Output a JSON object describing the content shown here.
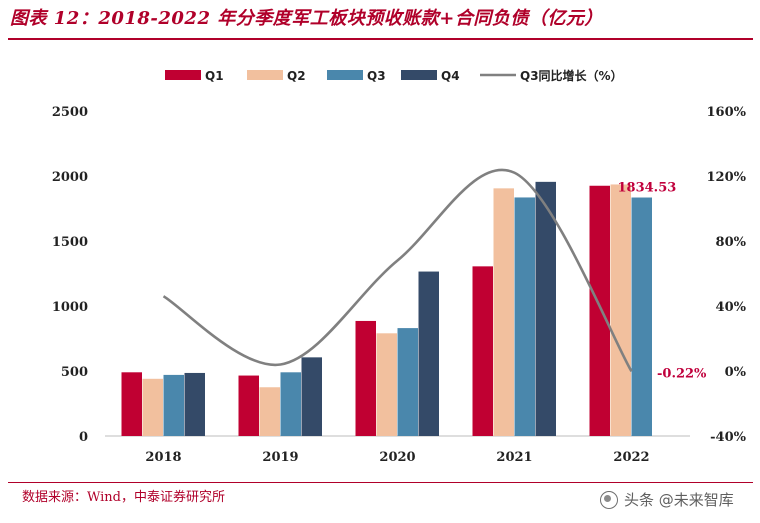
{
  "title": "图表 12：2018-2022 年分季度军工板块预收账款+合同负债（亿元）",
  "source": "数据来源：Wind，中泰证券研究所",
  "watermark": "头条 @未来智库",
  "colors": {
    "accent": "#b0002a",
    "q1": "#c00032",
    "q2": "#f2c09e",
    "q3": "#4a87ac",
    "q4": "#344a68",
    "line": "#808080",
    "label": "#c0003c"
  },
  "chart_data": {
    "type": "bar",
    "categories": [
      "2018",
      "2019",
      "2020",
      "2021",
      "2022"
    ],
    "series": [
      {
        "name": "Q1",
        "values": [
          490,
          465,
          885,
          1305,
          1925
        ]
      },
      {
        "name": "Q2",
        "values": [
          440,
          375,
          790,
          1905,
          1935
        ]
      },
      {
        "name": "Q3",
        "values": [
          470,
          490,
          830,
          1835,
          1834.53
        ]
      },
      {
        "name": "Q4",
        "values": [
          485,
          605,
          1265,
          1955,
          null
        ]
      }
    ],
    "line_series": {
      "name": "Q3同比增长（%）",
      "axis": "right",
      "values": [
        46,
        4,
        68,
        122,
        -0.22
      ]
    },
    "y_left": {
      "min": 0,
      "max": 2500,
      "ticks": [
        0,
        500,
        1000,
        1500,
        2000,
        2500
      ]
    },
    "y_right": {
      "min": -40,
      "max": 160,
      "ticks": [
        "-40%",
        "0%",
        "40%",
        "80%",
        "120%",
        "160%"
      ]
    },
    "annotations": {
      "bar_label": "1834.53",
      "line_label": "-0.22%"
    },
    "legend": [
      "Q1",
      "Q2",
      "Q3",
      "Q4",
      "Q3同比增长（%）"
    ]
  }
}
